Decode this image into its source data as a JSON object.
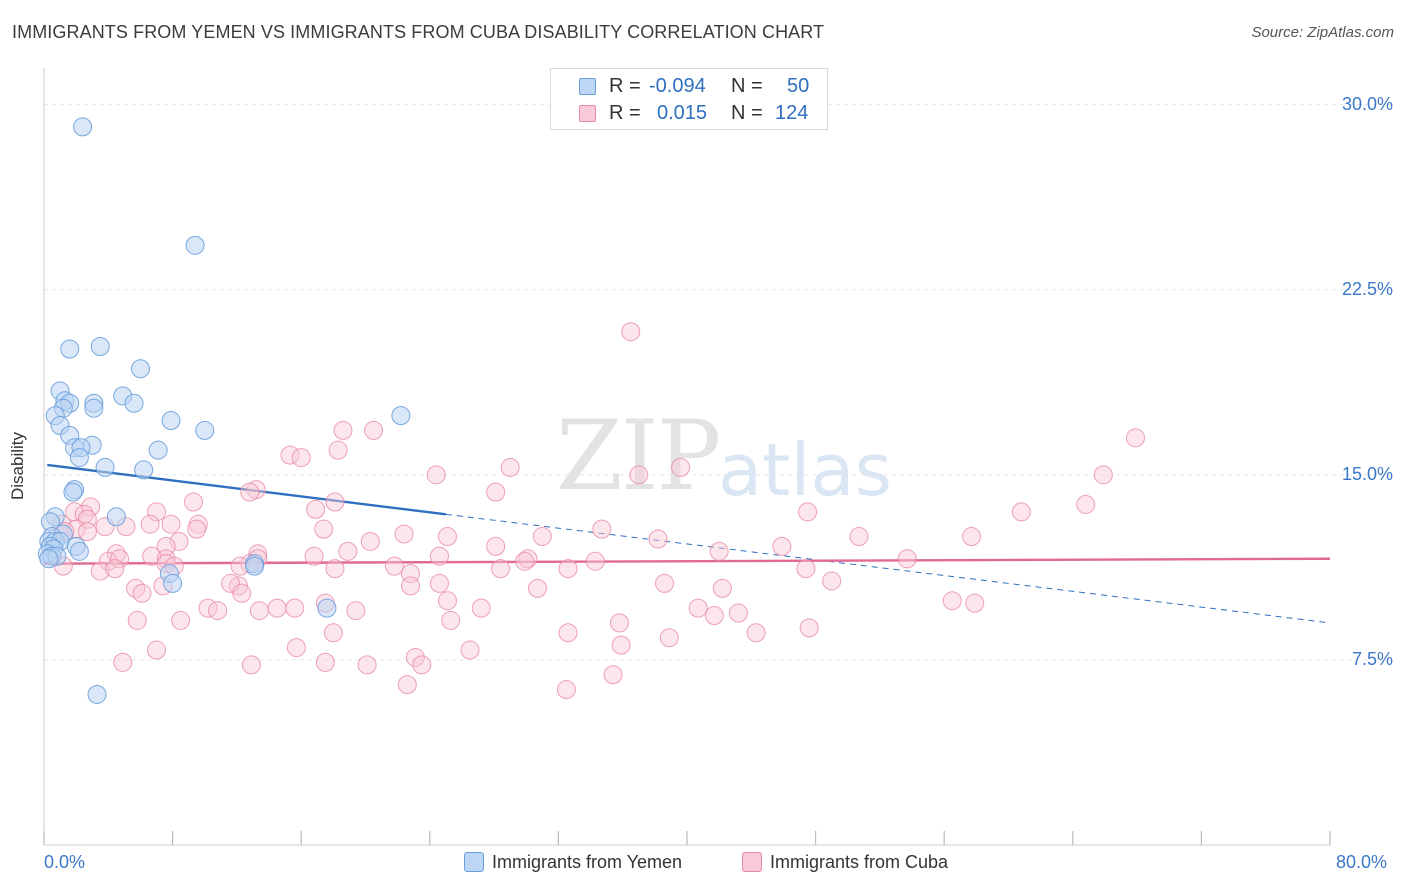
{
  "header": {
    "title": "IMMIGRANTS FROM YEMEN VS IMMIGRANTS FROM CUBA DISABILITY CORRELATION CHART",
    "source": "Source: ZipAtlas.com"
  },
  "watermark": {
    "zip": "ZIP",
    "atlas": "atlas"
  },
  "legend_top": {
    "rows": [
      {
        "r_label": "R =",
        "r_value": "-0.094",
        "n_label": "N =",
        "n_value": "50",
        "color": "#a8c8ef"
      },
      {
        "r_label": "R =",
        "r_value": "0.015",
        "n_label": "N =",
        "n_value": "124",
        "color": "#f5b8c8"
      }
    ]
  },
  "legend_bottom": {
    "yemen": "Immigrants from Yemen",
    "cuba": "Immigrants from Cuba"
  },
  "colors": {
    "yemen_fill": "#b9d3f2",
    "yemen_stroke": "#6a9fdb",
    "yemen_line": "#2f6fbf",
    "cuba_fill": "#f8c7d5",
    "cuba_stroke": "#e889a6",
    "cuba_line": "#e06a92",
    "grid": "#e6e6e6",
    "axis_label": "#3b78c9"
  },
  "chart_data": {
    "type": "scatter",
    "title": "IMMIGRANTS FROM YEMEN VS IMMIGRANTS FROM CUBA DISABILITY CORRELATION CHART",
    "ylabel": "Disability",
    "xlim": [
      0,
      80
    ],
    "ylim": [
      0,
      31
    ],
    "x_tick_labels": [
      "0.0%",
      "80.0%"
    ],
    "y_ticks": [
      7.5,
      15.0,
      22.5,
      30.0
    ],
    "y_tick_labels": [
      "7.5%",
      "15.0%",
      "22.5%",
      "30.0%"
    ],
    "grid": true,
    "series": [
      {
        "name": "Immigrants from Yemen",
        "r": -0.094,
        "n": 50,
        "trend": {
          "x0": 0.2,
          "y0": 15.4,
          "x1": 25,
          "y1": 13.4,
          "dash_x1": 80,
          "dash_y1": 9.0
        },
        "points": [
          [
            2.4,
            29.1
          ],
          [
            9.4,
            24.3
          ],
          [
            1.6,
            20.1
          ],
          [
            3.5,
            20.2
          ],
          [
            6.0,
            19.3
          ],
          [
            1.0,
            18.4
          ],
          [
            1.3,
            18.0
          ],
          [
            3.1,
            17.9
          ],
          [
            1.6,
            17.9
          ],
          [
            4.9,
            18.2
          ],
          [
            5.6,
            17.9
          ],
          [
            1.2,
            17.7
          ],
          [
            3.1,
            17.7
          ],
          [
            0.7,
            17.4
          ],
          [
            7.9,
            17.2
          ],
          [
            22.2,
            17.4
          ],
          [
            1.0,
            17.0
          ],
          [
            10.0,
            16.8
          ],
          [
            1.6,
            16.6
          ],
          [
            3.0,
            16.2
          ],
          [
            1.9,
            16.1
          ],
          [
            2.3,
            16.1
          ],
          [
            7.1,
            16.0
          ],
          [
            2.2,
            15.7
          ],
          [
            3.8,
            15.3
          ],
          [
            6.2,
            15.2
          ],
          [
            1.9,
            14.4
          ],
          [
            1.8,
            14.3
          ],
          [
            0.7,
            13.3
          ],
          [
            4.5,
            13.3
          ],
          [
            0.4,
            13.1
          ],
          [
            1.2,
            12.6
          ],
          [
            0.5,
            12.5
          ],
          [
            0.3,
            12.3
          ],
          [
            0.7,
            12.3
          ],
          [
            1.0,
            12.3
          ],
          [
            0.4,
            12.1
          ],
          [
            0.6,
            12.0
          ],
          [
            2.0,
            12.1
          ],
          [
            2.2,
            11.9
          ],
          [
            0.2,
            11.8
          ],
          [
            0.5,
            11.7
          ],
          [
            0.8,
            11.7
          ],
          [
            0.3,
            11.6
          ],
          [
            13.1,
            11.4
          ],
          [
            13.1,
            11.3
          ],
          [
            7.8,
            11.0
          ],
          [
            8.0,
            10.6
          ],
          [
            17.6,
            9.6
          ],
          [
            3.3,
            6.1
          ]
        ]
      },
      {
        "name": "Immigrants from Cuba",
        "r": 0.015,
        "n": 124,
        "trend": {
          "x0": 0,
          "y0": 11.4,
          "x1": 80,
          "y1": 11.6
        },
        "points": [
          [
            36.5,
            20.8
          ],
          [
            67.9,
            16.5
          ],
          [
            18.6,
            16.8
          ],
          [
            20.5,
            16.8
          ],
          [
            18.3,
            16.0
          ],
          [
            15.3,
            15.8
          ],
          [
            16.0,
            15.7
          ],
          [
            29.0,
            15.3
          ],
          [
            39.6,
            15.3
          ],
          [
            24.4,
            15.0
          ],
          [
            37.0,
            15.0
          ],
          [
            65.9,
            15.0
          ],
          [
            13.2,
            14.4
          ],
          [
            12.8,
            14.3
          ],
          [
            28.1,
            14.3
          ],
          [
            18.1,
            13.9
          ],
          [
            9.3,
            13.9
          ],
          [
            2.9,
            13.7
          ],
          [
            16.9,
            13.6
          ],
          [
            7.0,
            13.5
          ],
          [
            47.5,
            13.5
          ],
          [
            60.8,
            13.5
          ],
          [
            64.8,
            13.8
          ],
          [
            1.9,
            13.5
          ],
          [
            2.5,
            13.4
          ],
          [
            2.7,
            13.2
          ],
          [
            1.1,
            13.0
          ],
          [
            9.6,
            13.0
          ],
          [
            6.6,
            13.0
          ],
          [
            5.1,
            12.9
          ],
          [
            7.9,
            13.0
          ],
          [
            3.8,
            12.9
          ],
          [
            2.0,
            12.8
          ],
          [
            1.3,
            12.7
          ],
          [
            2.7,
            12.7
          ],
          [
            9.5,
            12.8
          ],
          [
            17.4,
            12.8
          ],
          [
            22.4,
            12.6
          ],
          [
            25.1,
            12.5
          ],
          [
            34.7,
            12.8
          ],
          [
            38.2,
            12.4
          ],
          [
            50.7,
            12.5
          ],
          [
            57.7,
            12.5
          ],
          [
            31.0,
            12.5
          ],
          [
            8.4,
            12.3
          ],
          [
            20.3,
            12.3
          ],
          [
            7.6,
            12.1
          ],
          [
            28.1,
            12.1
          ],
          [
            45.9,
            12.1
          ],
          [
            18.9,
            11.9
          ],
          [
            42.0,
            11.9
          ],
          [
            53.7,
            11.6
          ],
          [
            13.3,
            11.8
          ],
          [
            4.5,
            11.8
          ],
          [
            6.7,
            11.7
          ],
          [
            7.6,
            11.6
          ],
          [
            13.3,
            11.6
          ],
          [
            16.8,
            11.7
          ],
          [
            24.6,
            11.7
          ],
          [
            30.1,
            11.6
          ],
          [
            4.0,
            11.5
          ],
          [
            4.7,
            11.6
          ],
          [
            29.9,
            11.5
          ],
          [
            1.2,
            11.3
          ],
          [
            7.6,
            11.4
          ],
          [
            12.8,
            11.4
          ],
          [
            21.8,
            11.3
          ],
          [
            28.4,
            11.2
          ],
          [
            32.6,
            11.2
          ],
          [
            47.4,
            11.2
          ],
          [
            8.1,
            11.3
          ],
          [
            12.2,
            11.3
          ],
          [
            18.1,
            11.2
          ],
          [
            22.8,
            11.0
          ],
          [
            34.3,
            11.5
          ],
          [
            3.5,
            11.1
          ],
          [
            4.4,
            11.2
          ],
          [
            24.6,
            10.6
          ],
          [
            38.6,
            10.6
          ],
          [
            22.8,
            10.5
          ],
          [
            30.7,
            10.4
          ],
          [
            49.0,
            10.7
          ],
          [
            12.1,
            10.5
          ],
          [
            11.6,
            10.6
          ],
          [
            5.7,
            10.4
          ],
          [
            7.4,
            10.5
          ],
          [
            42.2,
            10.4
          ],
          [
            6.1,
            10.2
          ],
          [
            12.3,
            10.2
          ],
          [
            25.1,
            9.9
          ],
          [
            10.2,
            9.6
          ],
          [
            10.8,
            9.5
          ],
          [
            15.6,
            9.6
          ],
          [
            17.5,
            9.8
          ],
          [
            19.4,
            9.5
          ],
          [
            13.4,
            9.5
          ],
          [
            14.5,
            9.6
          ],
          [
            27.2,
            9.6
          ],
          [
            40.7,
            9.6
          ],
          [
            57.9,
            9.8
          ],
          [
            56.5,
            9.9
          ],
          [
            43.2,
            9.4
          ],
          [
            5.8,
            9.1
          ],
          [
            8.5,
            9.1
          ],
          [
            25.3,
            9.1
          ],
          [
            35.8,
            9.0
          ],
          [
            41.7,
            9.3
          ],
          [
            18.0,
            8.6
          ],
          [
            32.6,
            8.6
          ],
          [
            47.6,
            8.8
          ],
          [
            44.3,
            8.6
          ],
          [
            38.9,
            8.4
          ],
          [
            35.9,
            8.1
          ],
          [
            15.7,
            8.0
          ],
          [
            7.0,
            7.9
          ],
          [
            23.1,
            7.6
          ],
          [
            26.5,
            7.9
          ],
          [
            4.9,
            7.4
          ],
          [
            12.9,
            7.3
          ],
          [
            17.5,
            7.4
          ],
          [
            20.1,
            7.3
          ],
          [
            23.5,
            7.3
          ],
          [
            35.4,
            6.9
          ],
          [
            22.6,
            6.5
          ],
          [
            32.5,
            6.3
          ]
        ]
      }
    ]
  }
}
